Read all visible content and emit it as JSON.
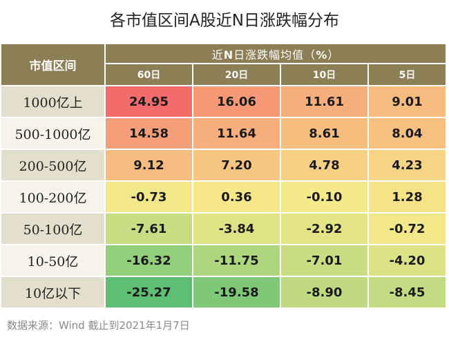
{
  "title": "各市值区间A股近N日涨跌幅分布",
  "header": {
    "corner_label": "市值区间",
    "group_prefix": "近",
    "group_n": "N",
    "group_suffix": "日涨跌幅均值（",
    "group_unit": "%",
    "group_close": "）"
  },
  "watermark_text": "Wind",
  "source_text": "数据来源：Wind    截止到2021年1月7日",
  "chart_data": {
    "type": "heatmap",
    "title": "各市值区间A股近N日涨跌幅分布",
    "row_header": "市值区间",
    "column_group_label": "近N日涨跌幅均值（%）",
    "columns": [
      "60日",
      "20日",
      "10日",
      "5日"
    ],
    "rows": [
      "1000亿上",
      "500-1000亿",
      "200-500亿",
      "100-200亿",
      "50-100亿",
      "10-50亿",
      "10亿以下"
    ],
    "values": [
      [
        24.95,
        16.06,
        11.61,
        9.01
      ],
      [
        14.58,
        11.64,
        8.61,
        8.04
      ],
      [
        9.12,
        7.2,
        4.78,
        4.23
      ],
      [
        -0.73,
        0.36,
        -0.1,
        1.28
      ],
      [
        -7.61,
        -3.84,
        -2.92,
        -0.72
      ],
      [
        -16.32,
        -11.75,
        -7.01,
        -4.2
      ],
      [
        -25.27,
        -19.58,
        -8.9,
        -8.45
      ]
    ],
    "color_scale": {
      "low": "#5cbf72",
      "mid": "#f6e98a",
      "high": "#f46b6b"
    }
  }
}
